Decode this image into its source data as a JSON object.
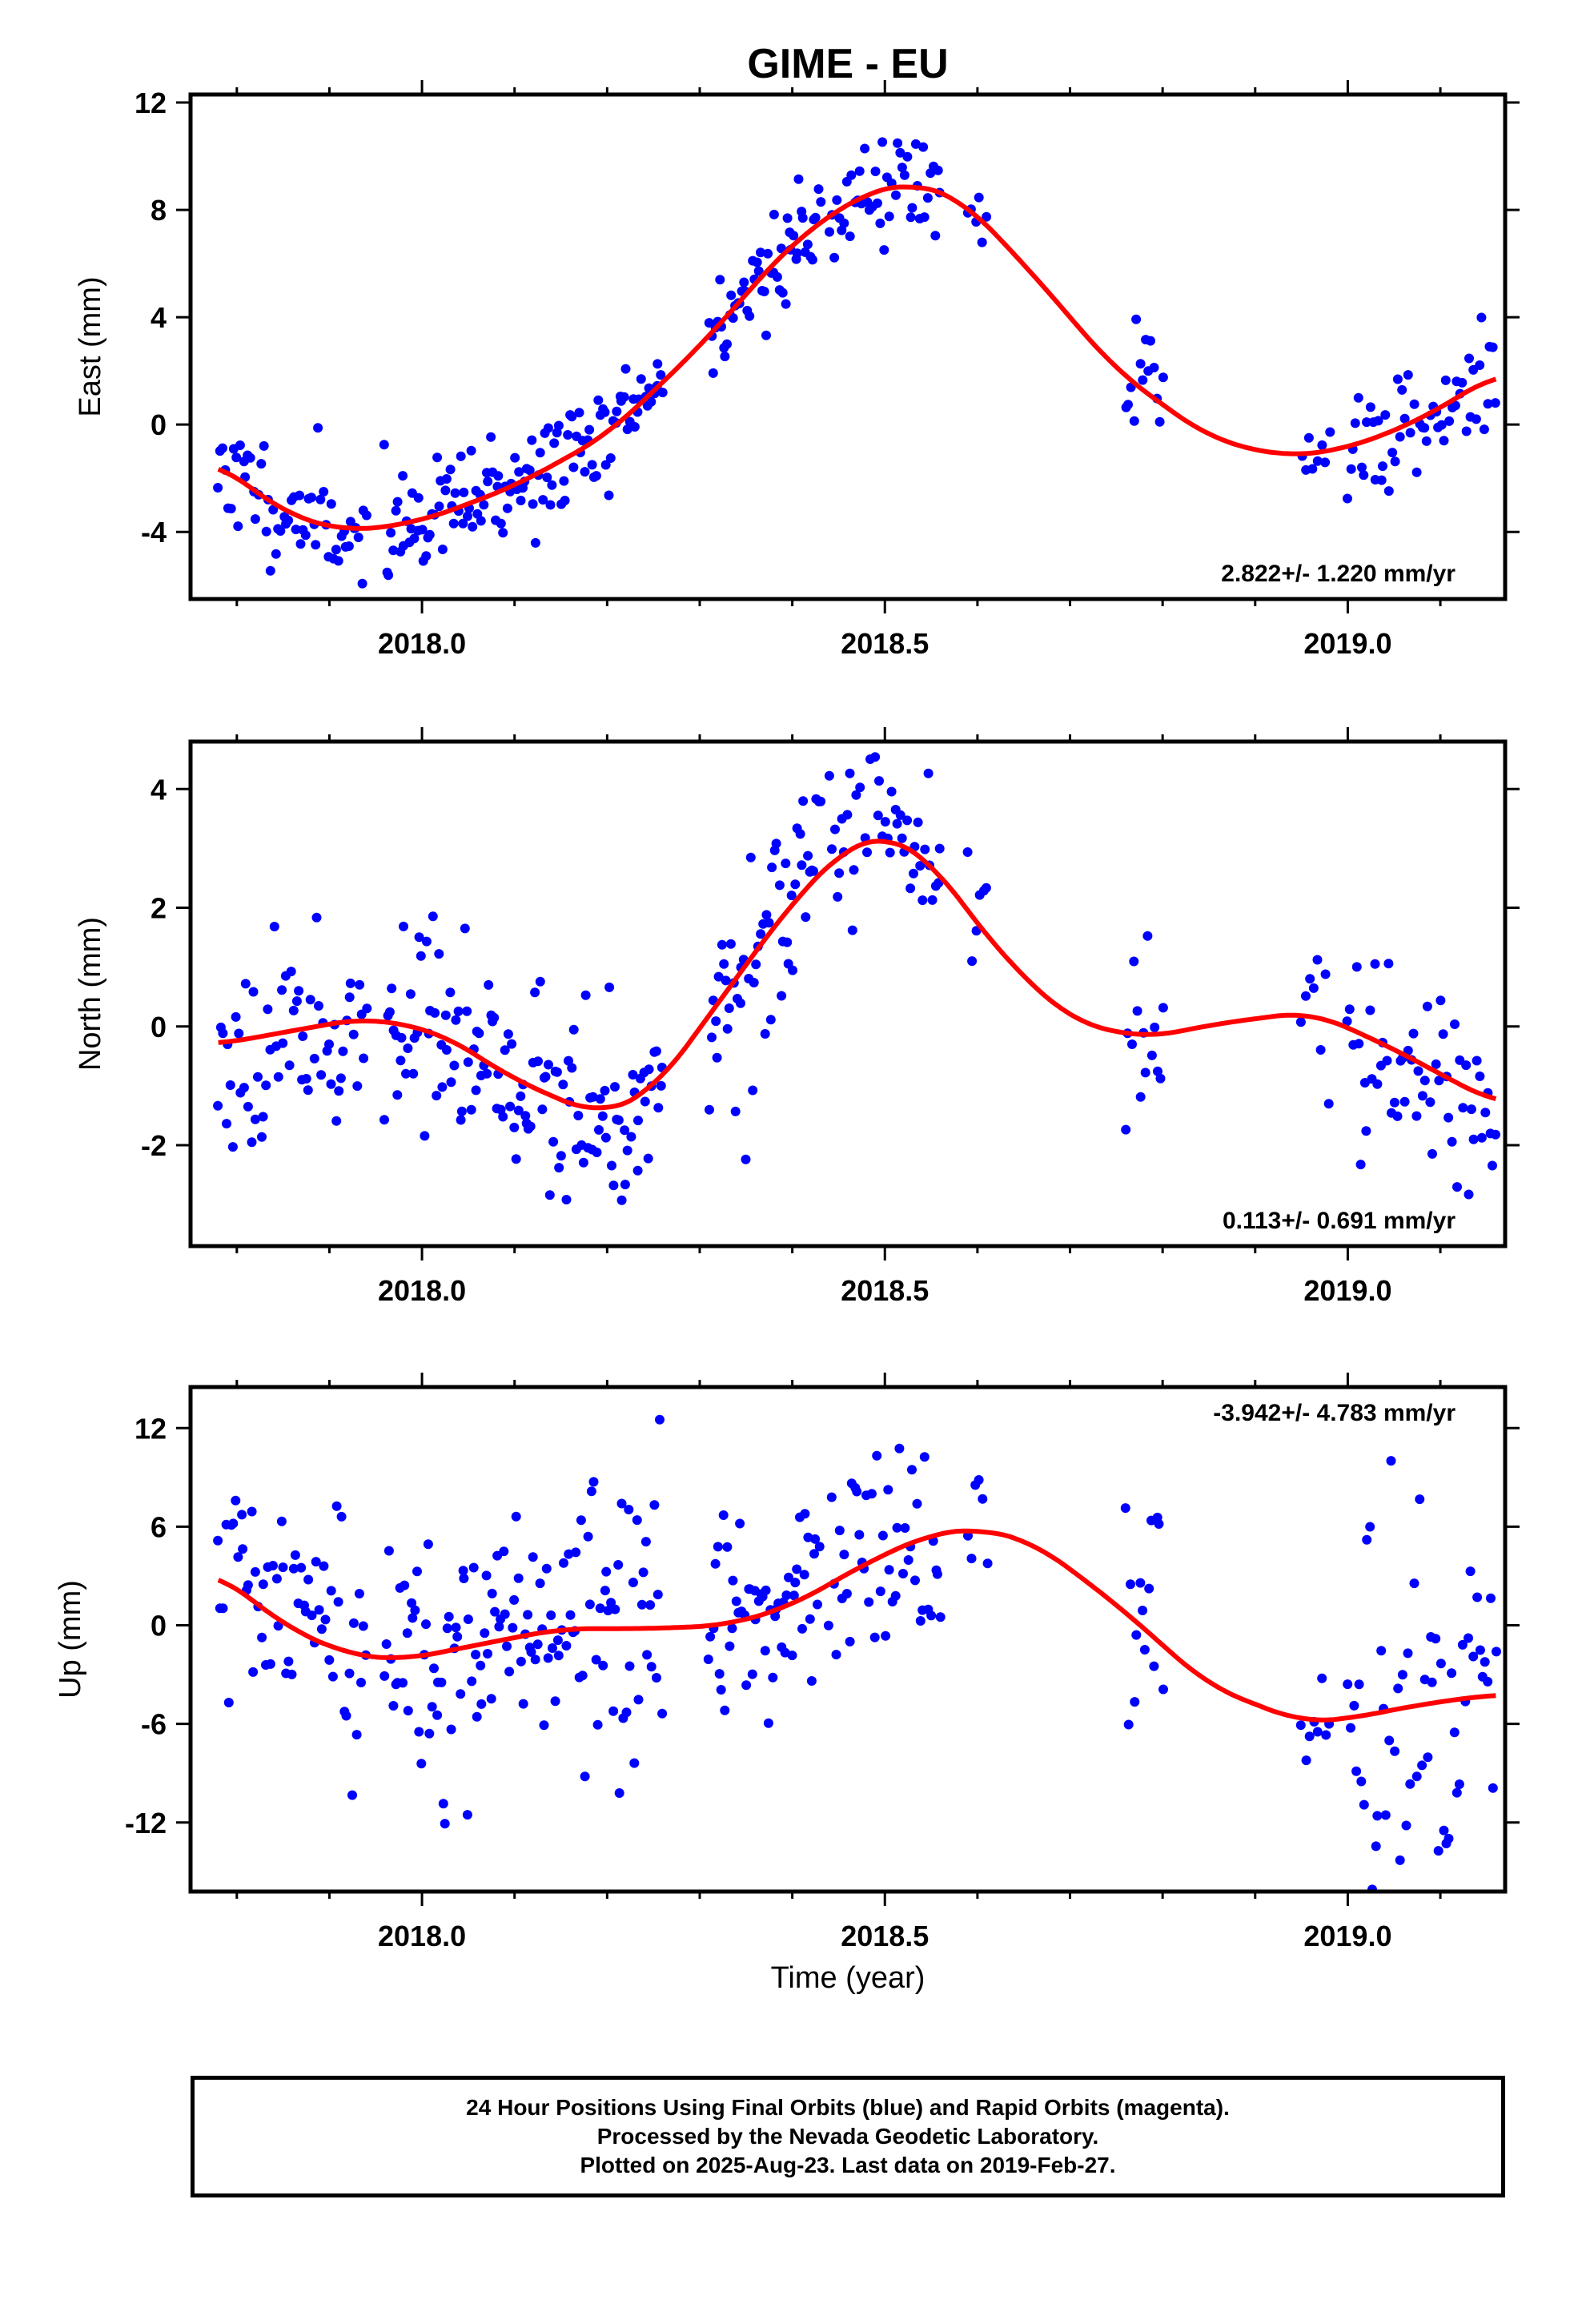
{
  "title": "GIME - EU",
  "xlabel": "Time (year)",
  "footer": {
    "line1": "24 Hour Positions Using Final Orbits (blue) and Rapid Orbits (magenta).",
    "line2": "Processed by the Nevada Geodetic Laboratory.",
    "line3": "Plotted on 2025-Aug-23. Last data on 2019-Feb-27."
  },
  "colors": {
    "points": "#0000ff",
    "fit": "#ff0000",
    "frame": "#000000"
  },
  "chart_data": [
    {
      "type": "scatter",
      "ylabel": "East (mm)",
      "xlim": [
        2017.75,
        2019.17
      ],
      "ylim": [
        -6.5,
        12.3
      ],
      "xticks": [
        2018.0,
        2018.5,
        2019.0
      ],
      "xtick_labels": [
        "2018.0",
        "2018.5",
        "2019.0"
      ],
      "yticks": [
        -4,
        0,
        4,
        8,
        12
      ],
      "ytick_labels": [
        "-4",
        "0",
        "4",
        "8",
        "12"
      ],
      "rate_label": "2.822+/- 1.220 mm/yr",
      "rate_position": "bottom-right",
      "segments": [
        {
          "start": 2017.78,
          "end": 2017.94,
          "n": 60,
          "sd": 1.0
        },
        {
          "start": 2017.96,
          "end": 2018.26,
          "n": 130,
          "sd": 1.0
        },
        {
          "start": 2018.31,
          "end": 2018.43,
          "n": 55,
          "sd": 1.1
        },
        {
          "start": 2018.44,
          "end": 2018.56,
          "n": 45,
          "sd": 1.0
        },
        {
          "start": 2018.59,
          "end": 2018.61,
          "n": 6,
          "sd": 0.6
        },
        {
          "start": 2018.76,
          "end": 2018.8,
          "n": 14,
          "sd": 1.3
        },
        {
          "start": 2018.95,
          "end": 2018.98,
          "n": 8,
          "sd": 0.8
        },
        {
          "start": 2019.0,
          "end": 2019.16,
          "n": 55,
          "sd": 1.1
        }
      ],
      "fit": {
        "x": [
          2017.78,
          2017.85,
          2017.92,
          2018.0,
          2018.1,
          2018.2,
          2018.3,
          2018.4,
          2018.48,
          2018.53,
          2018.58,
          2018.65,
          2018.75,
          2018.85,
          2018.93,
          2019.0,
          2019.08,
          2019.16
        ],
        "y": [
          -1.4,
          -3.3,
          -4.0,
          -3.6,
          -2.3,
          -0.4,
          2.9,
          6.8,
          8.7,
          9.0,
          8.5,
          6.0,
          2.0,
          -0.5,
          -1.2,
          -0.9,
          0.2,
          1.9
        ]
      },
      "noise_seed": 11
    },
    {
      "type": "scatter",
      "ylabel": "North (mm)",
      "xlim": [
        2017.75,
        2019.17
      ],
      "ylim": [
        -3.7,
        4.8
      ],
      "xticks": [
        2018.0,
        2018.5,
        2019.0
      ],
      "xtick_labels": [
        "2018.0",
        "2018.5",
        "2019.0"
      ],
      "yticks": [
        -2,
        0,
        2,
        4
      ],
      "ytick_labels": [
        "-2",
        "0",
        "2",
        "4"
      ],
      "rate_label": "0.113+/- 0.691 mm/yr",
      "rate_position": "bottom-right",
      "segments": [
        {
          "start": 2017.78,
          "end": 2017.94,
          "n": 60,
          "sd": 0.8
        },
        {
          "start": 2017.96,
          "end": 2018.26,
          "n": 130,
          "sd": 0.8
        },
        {
          "start": 2018.31,
          "end": 2018.43,
          "n": 55,
          "sd": 0.9
        },
        {
          "start": 2018.44,
          "end": 2018.56,
          "n": 45,
          "sd": 0.9
        },
        {
          "start": 2018.59,
          "end": 2018.61,
          "n": 6,
          "sd": 1.0
        },
        {
          "start": 2018.76,
          "end": 2018.8,
          "n": 14,
          "sd": 0.6
        },
        {
          "start": 2018.95,
          "end": 2018.98,
          "n": 8,
          "sd": 1.1
        },
        {
          "start": 2019.0,
          "end": 2019.16,
          "n": 55,
          "sd": 0.8
        }
      ],
      "fit": {
        "x": [
          2017.78,
          2017.85,
          2017.94,
          2018.02,
          2018.1,
          2018.19,
          2018.25,
          2018.32,
          2018.4,
          2018.46,
          2018.5,
          2018.55,
          2018.62,
          2018.7,
          2018.78,
          2018.86,
          2018.96,
          2019.04,
          2019.1,
          2019.16
        ],
        "y": [
          -0.3,
          -0.1,
          0.15,
          -0.1,
          -0.9,
          -1.5,
          -1.1,
          0.4,
          2.1,
          3.05,
          3.25,
          2.8,
          1.3,
          0.1,
          -0.2,
          0.05,
          0.25,
          -0.3,
          -0.8,
          -1.3
        ]
      },
      "noise_seed": 23
    },
    {
      "type": "scatter",
      "ylabel": "Up (mm)",
      "xlim": [
        2017.75,
        2019.17
      ],
      "ylim": [
        -16.2,
        14.5
      ],
      "xticks": [
        2018.0,
        2018.5,
        2019.0
      ],
      "xtick_labels": [
        "2018.0",
        "2018.5",
        "2019.0"
      ],
      "yticks": [
        -12,
        -6,
        0,
        6,
        12
      ],
      "ytick_labels": [
        "-12",
        "-6",
        "0",
        "6",
        "12"
      ],
      "rate_label": "-3.942+/- 4.783 mm/yr",
      "rate_position": "top-right",
      "segments": [
        {
          "start": 2017.78,
          "end": 2017.94,
          "n": 60,
          "sd": 3.6
        },
        {
          "start": 2017.96,
          "end": 2018.26,
          "n": 130,
          "sd": 4.2
        },
        {
          "start": 2018.31,
          "end": 2018.43,
          "n": 55,
          "sd": 3.2
        },
        {
          "start": 2018.44,
          "end": 2018.56,
          "n": 45,
          "sd": 3.6
        },
        {
          "start": 2018.59,
          "end": 2018.61,
          "n": 6,
          "sd": 2.2
        },
        {
          "start": 2018.76,
          "end": 2018.8,
          "n": 14,
          "sd": 3.5
        },
        {
          "start": 2018.95,
          "end": 2018.98,
          "n": 8,
          "sd": 3.0
        },
        {
          "start": 2019.0,
          "end": 2019.16,
          "n": 55,
          "sd": 5.0
        }
      ],
      "fit": {
        "x": [
          2017.78,
          2017.85,
          2017.92,
          2017.98,
          2018.05,
          2018.15,
          2018.25,
          2018.33,
          2018.4,
          2018.48,
          2018.55,
          2018.6,
          2018.66,
          2018.75,
          2018.85,
          2018.95,
          2019.0,
          2019.08,
          2019.16
        ],
        "y": [
          3.2,
          0.0,
          -1.8,
          -2.1,
          -1.3,
          -0.2,
          -0.2,
          0.0,
          1.2,
          3.8,
          5.6,
          5.9,
          5.1,
          1.3,
          -3.7,
          -5.9,
          -5.7,
          -4.8,
          -4.2
        ]
      },
      "noise_seed": 37
    }
  ]
}
